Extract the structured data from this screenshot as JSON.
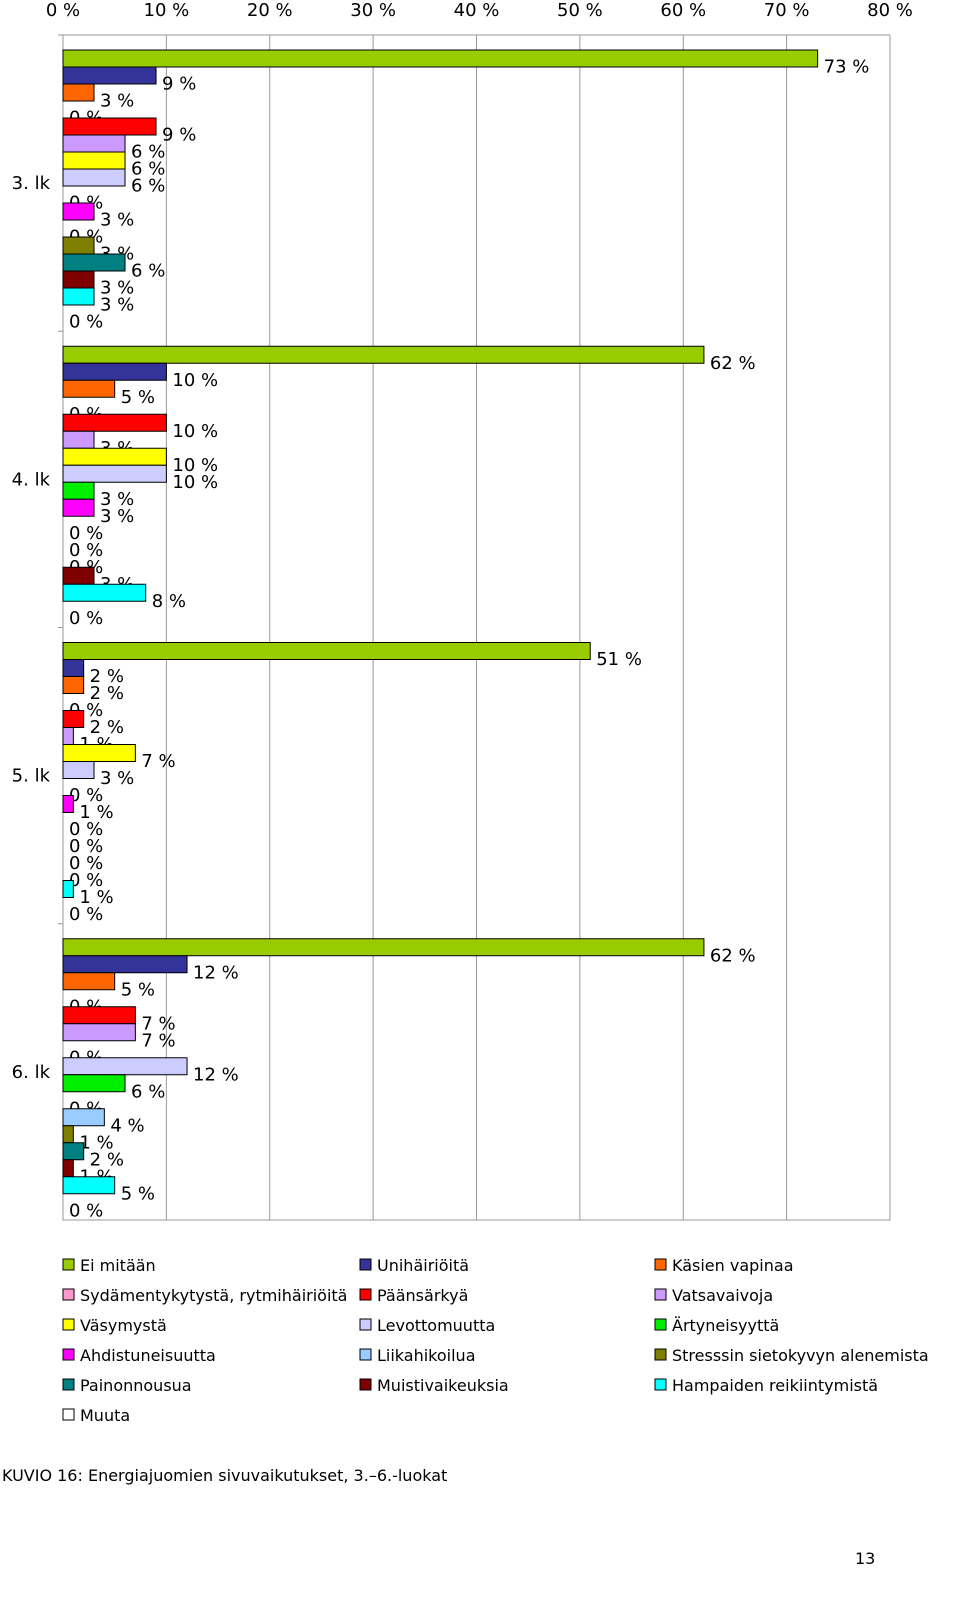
{
  "chart_data": {
    "type": "bar",
    "orientation": "horizontal",
    "categories": [
      "3. lk",
      "4. lk",
      "5. lk",
      "6. lk"
    ],
    "xlim": [
      0,
      80
    ],
    "xticks": [
      {
        "value": 0,
        "label": "0 %"
      },
      {
        "value": 10,
        "label": "10 %"
      },
      {
        "value": 20,
        "label": "20 %"
      },
      {
        "value": 30,
        "label": "30 %"
      },
      {
        "value": 40,
        "label": "40 %"
      },
      {
        "value": 50,
        "label": "50 %"
      },
      {
        "value": 60,
        "label": "60 %"
      },
      {
        "value": 70,
        "label": "70 %"
      },
      {
        "value": 80,
        "label": "80 %"
      }
    ],
    "grid": true,
    "series": [
      {
        "name": "Ei mitään",
        "color": "#99cc00",
        "values": [
          73,
          62,
          51,
          62
        ],
        "value_labels": [
          "73 %",
          "62 %",
          "51 %",
          "62 %"
        ]
      },
      {
        "name": "Unihäiriöitä",
        "color": "#333399",
        "values": [
          9,
          10,
          2,
          12
        ],
        "value_labels": [
          "9 %",
          "10 %",
          "2 %",
          "12 %"
        ]
      },
      {
        "name": "Käsien vapinaa",
        "color": "#ff6600",
        "values": [
          3,
          5,
          2,
          5
        ],
        "value_labels": [
          "3 %",
          "5 %",
          "2 %",
          "5 %"
        ]
      },
      {
        "name": "Sydämentykytystä, rytmihäiriöitä",
        "color": "#ff99cc",
        "values": [
          0,
          0,
          0,
          0
        ],
        "value_labels": [
          "0 %",
          "0 %",
          "0 %",
          "0 %"
        ]
      },
      {
        "name": "Päänsärkyä",
        "color": "#ff0000",
        "values": [
          9,
          10,
          2,
          7
        ],
        "value_labels": [
          "9 %",
          "10 %",
          "2 %",
          "7 %"
        ]
      },
      {
        "name": "Vatsavaivoja",
        "color": "#cc99ff",
        "values": [
          6,
          3,
          1,
          7
        ],
        "value_labels": [
          "6 %",
          "3 %",
          "1 %",
          "7 %"
        ]
      },
      {
        "name": "Väsymystä",
        "color": "#ffff00",
        "values": [
          6,
          10,
          7,
          0
        ],
        "value_labels": [
          "6 %",
          "10 %",
          "7 %",
          "0 %"
        ]
      },
      {
        "name": "Levottomuutta",
        "color": "#ccccff",
        "values": [
          6,
          10,
          3,
          12
        ],
        "value_labels": [
          "6 %",
          "10 %",
          "3 %",
          "12 %"
        ]
      },
      {
        "name": "Ärtyneisyyttä",
        "color": "#00ee00",
        "values": [
          0,
          3,
          0,
          6
        ],
        "value_labels": [
          "0 %",
          "3 %",
          "0 %",
          "6 %"
        ]
      },
      {
        "name": "Ahdistuneisuutta",
        "color": "#ff00ff",
        "values": [
          3,
          3,
          1,
          0
        ],
        "value_labels": [
          "3 %",
          "3 %",
          "1 %",
          "0 %"
        ]
      },
      {
        "name": "Liikahikoilua",
        "color": "#99ccff",
        "values": [
          0,
          0,
          0,
          4
        ],
        "value_labels": [
          "0 %",
          "0 %",
          "0 %",
          "4 %"
        ]
      },
      {
        "name": "Stresssin sietokyvyn alenemista",
        "color": "#808000",
        "values": [
          3,
          0,
          0,
          1
        ],
        "value_labels": [
          "3 %",
          "0 %",
          "0 %",
          "1 %"
        ]
      },
      {
        "name": "Painonnousua",
        "color": "#008080",
        "values": [
          6,
          0,
          0,
          2
        ],
        "value_labels": [
          "6 %",
          "0 %",
          "0 %",
          "2 %"
        ]
      },
      {
        "name": "Muistivaikeuksia",
        "color": "#800000",
        "values": [
          3,
          3,
          0,
          1
        ],
        "value_labels": [
          "3 %",
          "3 %",
          "0 %",
          "1 %"
        ]
      },
      {
        "name": "Hampaiden reikiintymistä",
        "color": "#00ffff",
        "values": [
          3,
          8,
          1,
          5
        ],
        "value_labels": [
          "3 %",
          "8 %",
          "1 %",
          "5 %"
        ]
      },
      {
        "name": "Muuta",
        "color": "#ffffff",
        "values": [
          0,
          0,
          0,
          0
        ],
        "value_labels": [
          "0 %",
          "0 %",
          "0 %",
          "0 %"
        ]
      }
    ]
  },
  "caption": "KUVIO 16: Energiajuomien sivuvaikutukset, 3.–6.-luokat",
  "page_number": "13"
}
